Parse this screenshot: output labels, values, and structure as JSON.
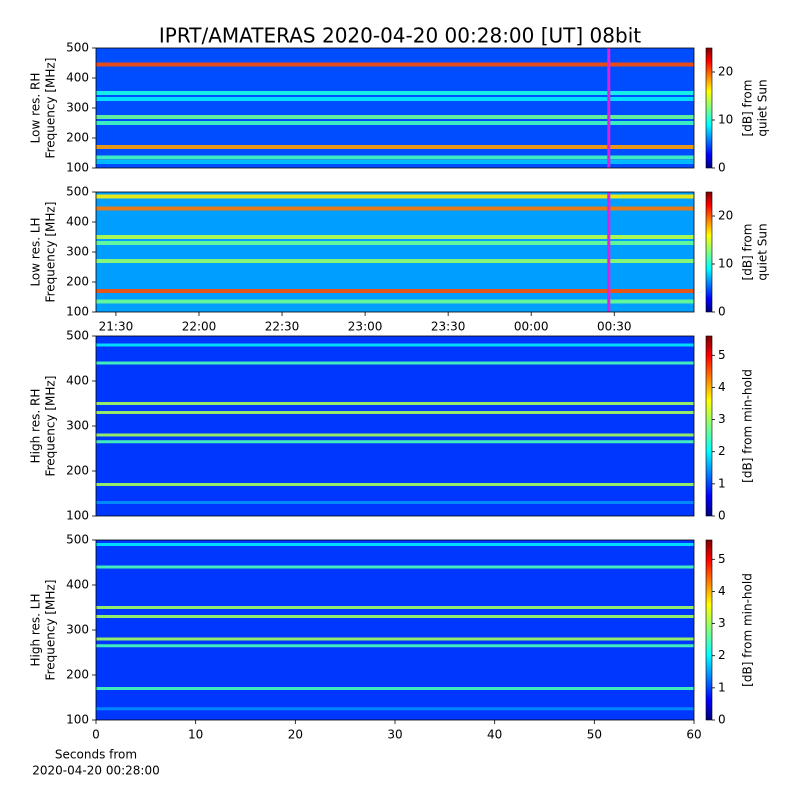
{
  "chart_data": [
    {
      "type": "heatmap",
      "title": "IPRT/AMATERAS 2020-04-20 00:28:00 [UT]   08bit",
      "ylabel": [
        "Low res. RH",
        "Frequency [MHz]"
      ],
      "ylim": [
        100,
        500
      ],
      "yticks": [
        100,
        200,
        300,
        400,
        500
      ],
      "xlim": [
        21.38,
        24.98
      ],
      "marker_time": 24.467,
      "marker_color": "#e020e0",
      "colorbar": {
        "label": [
          "[dB] from",
          "quiet Sun"
        ],
        "lim": [
          0,
          25
        ],
        "ticks": [
          0,
          10,
          20
        ]
      },
      "background": 5,
      "bands": [
        {
          "freq": 445,
          "value": 20
        },
        {
          "freq": 350,
          "value": 10
        },
        {
          "freq": 330,
          "value": 9
        },
        {
          "freq": 270,
          "value": 12
        },
        {
          "freq": 250,
          "value": 11
        },
        {
          "freq": 170,
          "value": 18
        },
        {
          "freq": 135,
          "value": 11
        },
        {
          "freq": 120,
          "value": 8
        }
      ]
    },
    {
      "type": "heatmap",
      "ylabel": [
        "Low res. LH",
        "Frequency [MHz]"
      ],
      "ylim": [
        100,
        500
      ],
      "yticks": [
        100,
        200,
        300,
        400,
        500
      ],
      "xlim": [
        21.38,
        24.98
      ],
      "xticks": [
        {
          "value": 21.5,
          "label": "21:30"
        },
        {
          "value": 22,
          "label": "22:00"
        },
        {
          "value": 22.5,
          "label": "22:30"
        },
        {
          "value": 23,
          "label": "23:00"
        },
        {
          "value": 23.5,
          "label": "23:30"
        },
        {
          "value": 24,
          "label": "00:00"
        },
        {
          "value": 24.5,
          "label": "00:30"
        }
      ],
      "marker_time": 24.467,
      "marker_color": "#e020e0",
      "colorbar": {
        "label": [
          "[dB] from",
          "quiet Sun"
        ],
        "lim": [
          0,
          25
        ],
        "ticks": [
          0,
          10,
          20
        ]
      },
      "background": 7,
      "bands": [
        {
          "freq": 485,
          "value": 16
        },
        {
          "freq": 445,
          "value": 19
        },
        {
          "freq": 350,
          "value": 14
        },
        {
          "freq": 330,
          "value": 12
        },
        {
          "freq": 270,
          "value": 13
        },
        {
          "freq": 170,
          "value": 20
        },
        {
          "freq": 135,
          "value": 12
        }
      ]
    },
    {
      "type": "heatmap",
      "ylabel": [
        "High res. RH",
        "Frequency [MHz]"
      ],
      "ylim": [
        100,
        500
      ],
      "yticks": [
        100,
        200,
        300,
        400,
        500
      ],
      "xlim": [
        0,
        60
      ],
      "colorbar": {
        "label": [
          "[dB] from min-hold"
        ],
        "lim": [
          0,
          5.6
        ],
        "ticks": [
          0,
          1,
          2,
          3,
          4,
          5
        ]
      },
      "background": 1,
      "bands": [
        {
          "freq": 480,
          "value": 2
        },
        {
          "freq": 440,
          "value": 2.5
        },
        {
          "freq": 350,
          "value": 3
        },
        {
          "freq": 330,
          "value": 3
        },
        {
          "freq": 280,
          "value": 3
        },
        {
          "freq": 265,
          "value": 2.5
        },
        {
          "freq": 170,
          "value": 3
        },
        {
          "freq": 130,
          "value": 1.5
        }
      ]
    },
    {
      "type": "heatmap",
      "ylabel": [
        "High res. LH",
        "Frequency [MHz]"
      ],
      "ylim": [
        100,
        500
      ],
      "yticks": [
        100,
        200,
        300,
        400,
        500
      ],
      "xlim": [
        0,
        60
      ],
      "xticks": [
        0,
        10,
        20,
        30,
        40,
        50,
        60
      ],
      "xlabel": [
        "Seconds from",
        "2020-04-20 00:28:00"
      ],
      "colorbar": {
        "label": [
          "[dB] from min-hold"
        ],
        "lim": [
          0,
          5.6
        ],
        "ticks": [
          0,
          1,
          2,
          3,
          4,
          5
        ]
      },
      "background": 1,
      "bands": [
        {
          "freq": 490,
          "value": 2
        },
        {
          "freq": 440,
          "value": 2.5
        },
        {
          "freq": 350,
          "value": 3
        },
        {
          "freq": 330,
          "value": 3
        },
        {
          "freq": 280,
          "value": 3
        },
        {
          "freq": 265,
          "value": 2.5
        },
        {
          "freq": 170,
          "value": 2.5
        },
        {
          "freq": 125,
          "value": 1.5
        }
      ]
    }
  ]
}
